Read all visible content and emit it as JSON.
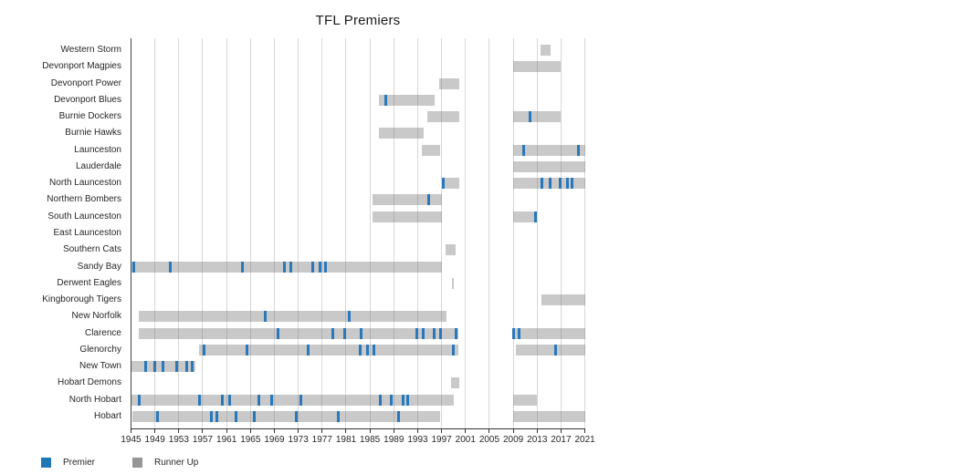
{
  "chart_data": {
    "type": "bar",
    "subtype": "horizontal timeline (broken bars per team; gray span = runner-up era, blue tick = premiership year)",
    "title": "TFL Premiers",
    "xlabel": "",
    "ylabel": "",
    "x_range": [
      1945,
      2021
    ],
    "x_ticks": [
      1945,
      1949,
      1953,
      1957,
      1961,
      1965,
      1969,
      1973,
      1977,
      1981,
      1985,
      1989,
      1993,
      1997,
      2001,
      2005,
      2009,
      2013,
      2017,
      2021
    ],
    "grid": "vertical-on",
    "legend_position": "bottom-left",
    "legend": [
      {
        "label": "Premier",
        "color": "#1f77b4"
      },
      {
        "label": "Runner Up",
        "color": "#969696"
      }
    ],
    "bar_color": "#c9c9c9",
    "premier_tick_color": "#2878bb",
    "teams": [
      {
        "name": "Western Storm",
        "runner_up_spans": [
          [
            2013.5,
            2015.3
          ]
        ],
        "premier_years": []
      },
      {
        "name": "Devonport Magpies",
        "runner_up_spans": [
          [
            2009,
            2017
          ]
        ],
        "premier_years": []
      },
      {
        "name": "Devonport Power",
        "runner_up_spans": [
          [
            1996.6,
            2000
          ]
        ],
        "premier_years": []
      },
      {
        "name": "Devonport Blues",
        "runner_up_spans": [
          [
            1986.5,
            1995.8
          ]
        ],
        "premier_years": [
          1987.6
        ]
      },
      {
        "name": "Burnie Dockers",
        "runner_up_spans": [
          [
            1994.6,
            2000
          ],
          [
            2009,
            2017
          ]
        ],
        "premier_years": [
          2011.8
        ]
      },
      {
        "name": "Burnie Hawks",
        "runner_up_spans": [
          [
            1986.5,
            1994
          ]
        ],
        "premier_years": []
      },
      {
        "name": "Launceston",
        "runner_up_spans": [
          [
            1993.7,
            1996.8
          ],
          [
            2009,
            2021
          ]
        ],
        "premier_years": [
          2010.8,
          2019.9
        ]
      },
      {
        "name": "Lauderdale",
        "runner_up_spans": [
          [
            2009,
            2021
          ]
        ],
        "premier_years": []
      },
      {
        "name": "North Launceston",
        "runner_up_spans": [
          [
            1997,
            2000
          ],
          [
            2009,
            2021
          ]
        ],
        "premier_years": [
          1997.3,
          2013.8,
          2015.1,
          2016.8,
          2018.1,
          2018.9
        ]
      },
      {
        "name": "Northern Bombers",
        "runner_up_spans": [
          [
            1985.5,
            1997
          ]
        ],
        "premier_years": [
          1994.9
        ]
      },
      {
        "name": "South Launceston",
        "runner_up_spans": [
          [
            1985.5,
            1997
          ],
          [
            2009,
            2013
          ]
        ],
        "premier_years": [
          2012.8
        ]
      },
      {
        "name": "East Launceston",
        "runner_up_spans": [],
        "premier_years": []
      },
      {
        "name": "Southern Cats",
        "runner_up_spans": [
          [
            1997.7,
            1999.3
          ]
        ],
        "premier_years": []
      },
      {
        "name": "Sandy Bay",
        "runner_up_spans": [
          [
            1945,
            1997
          ]
        ],
        "premier_years": [
          1945.4,
          1951.5,
          1963.7,
          1970.7,
          1971.8,
          1975.5,
          1976.7,
          1977.6
        ]
      },
      {
        "name": "Derwent Eagles",
        "runner_up_spans": [
          [
            1998.7,
            1999.1
          ]
        ],
        "premier_years": []
      },
      {
        "name": "Kingborough Tigers",
        "runner_up_spans": [
          [
            2013.7,
            2021
          ]
        ],
        "premier_years": []
      },
      {
        "name": "New Norfolk",
        "runner_up_spans": [
          [
            1946.3,
            1997.8
          ]
        ],
        "premier_years": [
          1967.5,
          1981.6
        ]
      },
      {
        "name": "Clarence",
        "runner_up_spans": [
          [
            1946.3,
            1999.8
          ],
          [
            2008.8,
            2021
          ]
        ],
        "premier_years": [
          1969.6,
          1978.8,
          1980.7,
          1983.5,
          1992.9,
          1994.0,
          1995.8,
          1996.9,
          1999.4,
          2009.0,
          2010.0
        ]
      },
      {
        "name": "Glenorchy",
        "runner_up_spans": [
          [
            1956.4,
            1999.8
          ],
          [
            2009.4,
            2021
          ]
        ],
        "premier_years": [
          1957.3,
          1964.4,
          1974.6,
          1983.3,
          1984.6,
          1985.7,
          1998.9,
          2016.1
        ]
      },
      {
        "name": "New Town",
        "runner_up_spans": [
          [
            1945,
            1955.8
          ]
        ],
        "premier_years": [
          1947.4,
          1948.9,
          1950.4,
          1952.6,
          1954.3,
          1955.3
        ]
      },
      {
        "name": "Hobart Demons",
        "runner_up_spans": [
          [
            1998.6,
            1999.9
          ]
        ],
        "premier_years": []
      },
      {
        "name": "North Hobart",
        "runner_up_spans": [
          [
            1945,
            1999.1
          ],
          [
            2009,
            2013
          ]
        ],
        "premier_years": [
          1946.3,
          1956.4,
          1960.3,
          1961.5,
          1966.4,
          1968.5,
          1973.5,
          1986.7,
          1988.5,
          1990.6,
          1991.4
        ]
      },
      {
        "name": "Hobart",
        "runner_up_spans": [
          [
            1945.2,
            1996.7
          ],
          [
            2009,
            2021
          ]
        ],
        "premier_years": [
          1949.5,
          1958.5,
          1959.4,
          1962.6,
          1965.7,
          1972.7,
          1979.7,
          1989.8
        ]
      }
    ]
  }
}
